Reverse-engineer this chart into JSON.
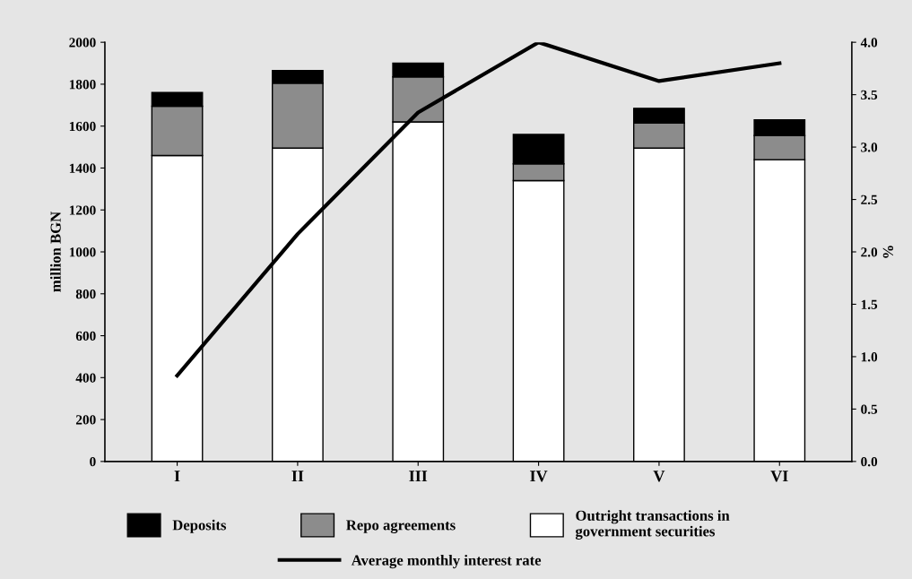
{
  "chart_data": {
    "type": "bar",
    "stacked": true,
    "categories": [
      "I",
      "II",
      "III",
      "IV",
      "V",
      "VI"
    ],
    "ylabel": "million BGN",
    "y2label": "%",
    "ylim": [
      0,
      2000
    ],
    "yticks": [
      0,
      200,
      400,
      600,
      800,
      1000,
      1200,
      1400,
      1600,
      1800,
      2000
    ],
    "y2lim": [
      0,
      4
    ],
    "y2ticks": [
      {
        "value": 0,
        "label": "0.0"
      },
      {
        "value": 0.5,
        "label": "0.5"
      },
      {
        "value": 1,
        "label": "1.0"
      },
      {
        "value": 1.5,
        "label": "1.5"
      },
      {
        "value": 2,
        "label": "2.0"
      },
      {
        "value": 2.5,
        "label": "2.5"
      },
      {
        "value": 3,
        "label": "3.0"
      },
      {
        "value": 3.5,
        "label": "3.5"
      },
      {
        "value": 4,
        "label": "4.0"
      }
    ],
    "series": [
      {
        "name": "Outright transactions in\ngovernment securities",
        "color": "#ffffff",
        "values": [
          1460,
          1495,
          1620,
          1340,
          1495,
          1440
        ]
      },
      {
        "name": "Repo agreements",
        "color": "#8c8c8c",
        "values": [
          235,
          310,
          215,
          80,
          120,
          115
        ]
      },
      {
        "name": "Deposits",
        "color": "#000000",
        "values": [
          65,
          60,
          65,
          140,
          70,
          75
        ]
      },
      {
        "name": "Average monthly interest rate",
        "type": "line",
        "axis": "y2",
        "color": "#000000",
        "values": [
          0.82,
          2.17,
          3.33,
          4.0,
          3.63,
          3.8
        ]
      }
    ],
    "grid": false,
    "legend": "bottom"
  }
}
